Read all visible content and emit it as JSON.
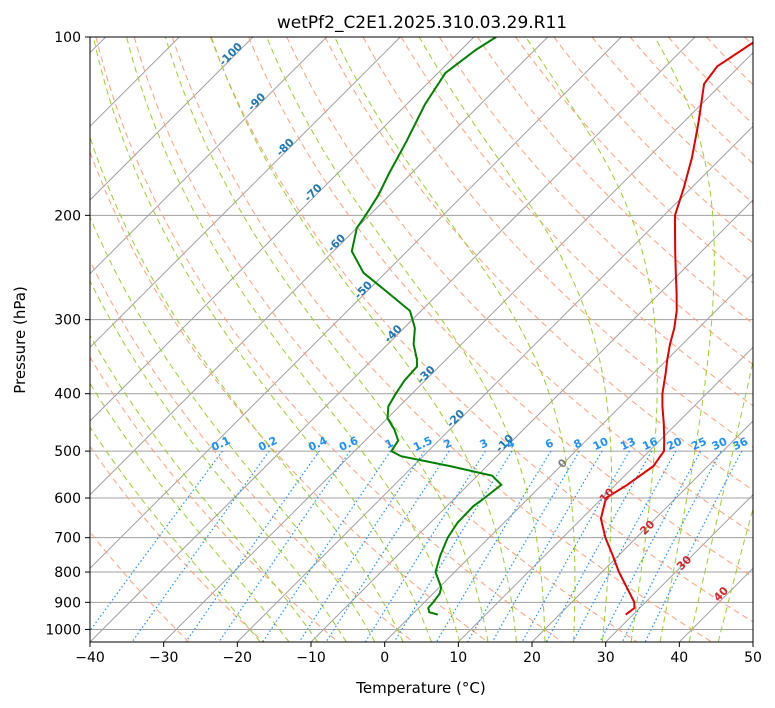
{
  "chart_data": {
    "type": "line",
    "title": "wetPf2_C2E1.2025.310.03.29.R11",
    "xlabel": "Temperature (°C)",
    "ylabel": "Pressure (hPa)",
    "xlim": [
      -40,
      50
    ],
    "ylim": [
      1050,
      100
    ],
    "x_ticks": [
      -40,
      -30,
      -20,
      -10,
      0,
      10,
      20,
      30,
      40,
      50
    ],
    "y_ticks": [
      1000,
      900,
      800,
      700,
      600,
      500,
      400,
      300,
      200,
      100
    ],
    "skew_deg": 45,
    "series": [
      {
        "name": "Temperature",
        "color": "#e00000",
        "points": [
          [
            944,
            29.0
          ],
          [
            920,
            29.3
          ],
          [
            900,
            28.5
          ],
          [
            850,
            25.5
          ],
          [
            800,
            22.3
          ],
          [
            750,
            19.2
          ],
          [
            700,
            15.8
          ],
          [
            650,
            12.6
          ],
          [
            600,
            10.5
          ],
          [
            570,
            11.6
          ],
          [
            530,
            12.6
          ],
          [
            500,
            12.0
          ],
          [
            480,
            10.6
          ],
          [
            450,
            8.3
          ],
          [
            420,
            5.7
          ],
          [
            400,
            4.0
          ],
          [
            370,
            1.7
          ],
          [
            350,
            0.0
          ],
          [
            330,
            -1.7
          ],
          [
            310,
            -3.3
          ],
          [
            290,
            -5.3
          ],
          [
            270,
            -7.8
          ],
          [
            250,
            -10.6
          ],
          [
            230,
            -13.6
          ],
          [
            210,
            -16.8
          ],
          [
            200,
            -18.5
          ],
          [
            180,
            -21.0
          ],
          [
            160,
            -24.0
          ],
          [
            140,
            -27.8
          ],
          [
            120,
            -32.4
          ],
          [
            112,
            -33.0
          ],
          [
            106,
            -32.0
          ],
          [
            100,
            -31.0
          ]
        ]
      },
      {
        "name": "Dewpoint",
        "color": "#008000",
        "points": [
          [
            944,
            3.5
          ],
          [
            935,
            2.0
          ],
          [
            920,
            1.3
          ],
          [
            900,
            1.2
          ],
          [
            870,
            0.9
          ],
          [
            850,
            0.3
          ],
          [
            800,
            -2.6
          ],
          [
            750,
            -4.2
          ],
          [
            700,
            -5.6
          ],
          [
            660,
            -6.3
          ],
          [
            620,
            -6.4
          ],
          [
            600,
            -6.0
          ],
          [
            570,
            -5.5
          ],
          [
            550,
            -8.0
          ],
          [
            530,
            -15.0
          ],
          [
            510,
            -23.0
          ],
          [
            500,
            -25.0
          ],
          [
            480,
            -25.5
          ],
          [
            460,
            -27.5
          ],
          [
            440,
            -30.0
          ],
          [
            420,
            -31.5
          ],
          [
            400,
            -32.2
          ],
          [
            380,
            -32.8
          ],
          [
            360,
            -33.0
          ],
          [
            350,
            -34.0
          ],
          [
            330,
            -36.5
          ],
          [
            310,
            -38.5
          ],
          [
            290,
            -41.5
          ],
          [
            270,
            -47.0
          ],
          [
            250,
            -53.0
          ],
          [
            230,
            -57.5
          ],
          [
            210,
            -60.0
          ],
          [
            200,
            -60.5
          ],
          [
            185,
            -61.5
          ],
          [
            170,
            -63.0
          ],
          [
            150,
            -65.0
          ],
          [
            130,
            -67.5
          ],
          [
            115,
            -69.0
          ],
          [
            105,
            -68.0
          ],
          [
            100,
            -67.0
          ]
        ]
      }
    ],
    "dry_adiabat_labels": [
      "-100",
      "-90",
      "-80",
      "-70",
      "-60",
      "-50",
      "-40",
      "-30",
      "-20",
      "-10"
    ],
    "mixing_ratio_labels": [
      "0.1",
      "0.2",
      "0.4",
      "0.6",
      "1",
      "1.5",
      "2",
      "3",
      "4",
      "6",
      "8",
      "10",
      "13",
      "16",
      "20",
      "25",
      "30",
      "36"
    ],
    "moist_adiabat_labels": [
      "0",
      "10",
      "20",
      "30",
      "40"
    ],
    "colors": {
      "isotherm": "#a0a0a0",
      "dry_adiabat": "#ffa07a",
      "moist_adiabat": "#9acd32",
      "mixing_ratio": "#1e90ff",
      "dry_label": "#1f77b4",
      "moist_label": "#d62728",
      "zero_label": "#808080"
    }
  }
}
